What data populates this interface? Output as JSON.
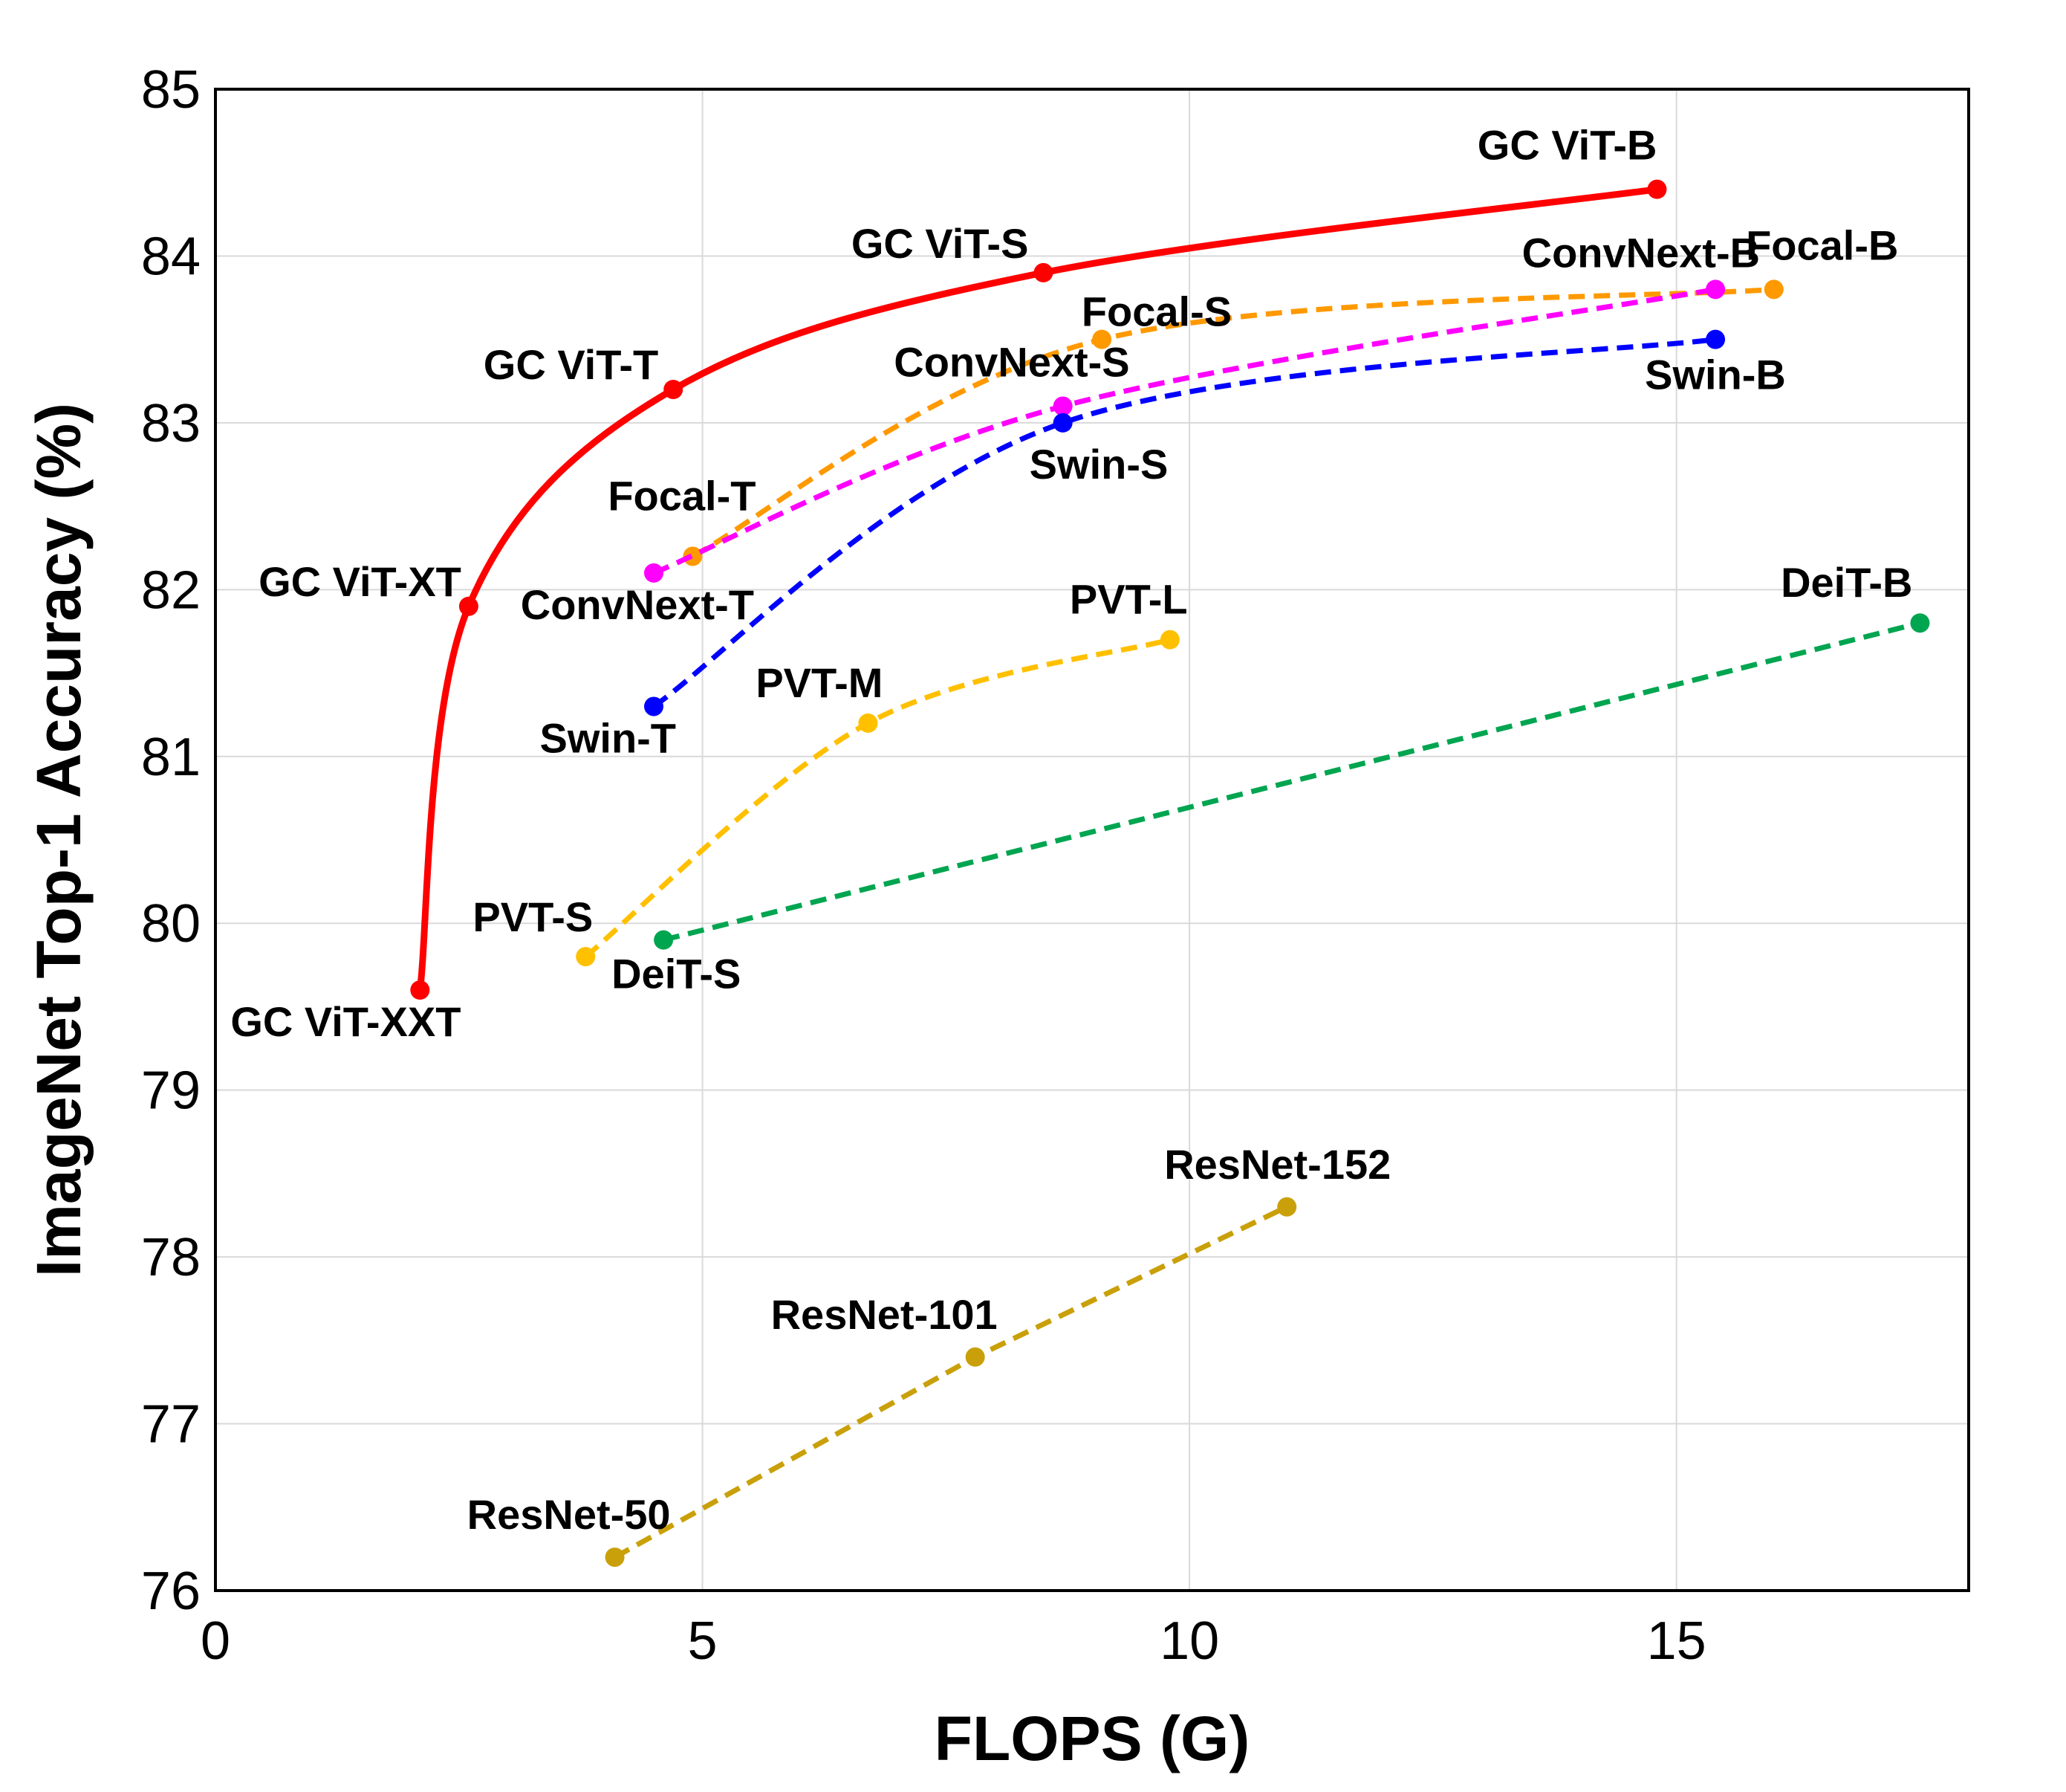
{
  "chart_data": {
    "type": "line",
    "xlabel": "FLOPS (G)",
    "ylabel": "ImageNet Top-1 Accuracy (%)",
    "xlim": [
      0,
      18
    ],
    "ylim": [
      76,
      85
    ],
    "xticks": [
      0,
      5,
      10,
      15
    ],
    "yticks": [
      76,
      77,
      78,
      79,
      80,
      81,
      82,
      83,
      84,
      85
    ],
    "grid": true,
    "series": [
      {
        "name": "GC ViT",
        "color": "#ff0000",
        "style": "solid",
        "smooth": true,
        "points": [
          {
            "label": "GC ViT-XXT",
            "x": 2.1,
            "y": 79.6
          },
          {
            "label": "GC ViT-XT",
            "x": 2.6,
            "y": 81.9
          },
          {
            "label": "GC ViT-T",
            "x": 4.7,
            "y": 83.2
          },
          {
            "label": "GC ViT-S",
            "x": 8.5,
            "y": 83.9
          },
          {
            "label": "GC ViT-B",
            "x": 14.8,
            "y": 84.4
          }
        ]
      },
      {
        "name": "Focal",
        "color": "#ff9900",
        "style": "dashed",
        "smooth": true,
        "points": [
          {
            "label": "Focal-T",
            "x": 4.9,
            "y": 82.2
          },
          {
            "label": "Focal-S",
            "x": 9.1,
            "y": 83.5
          },
          {
            "label": "Focal-B",
            "x": 16.0,
            "y": 83.8
          }
        ]
      },
      {
        "name": "ConvNext",
        "color": "#ff00ff",
        "style": "dashed",
        "smooth": true,
        "points": [
          {
            "label": "ConvNext-T",
            "x": 4.5,
            "y": 82.1
          },
          {
            "label": "ConvNext-S",
            "x": 8.7,
            "y": 83.1
          },
          {
            "label": "ConvNext-B",
            "x": 15.4,
            "y": 83.8
          }
        ]
      },
      {
        "name": "Swin",
        "color": "#0000ff",
        "style": "dashed",
        "smooth": true,
        "points": [
          {
            "label": "Swin-T",
            "x": 4.5,
            "y": 81.3
          },
          {
            "label": "Swin-S",
            "x": 8.7,
            "y": 83.0
          },
          {
            "label": "Swin-B",
            "x": 15.4,
            "y": 83.5
          }
        ]
      },
      {
        "name": "PVT",
        "color": "#ffc000",
        "style": "dashed",
        "smooth": true,
        "points": [
          {
            "label": "PVT-S",
            "x": 3.8,
            "y": 79.8
          },
          {
            "label": "PVT-M",
            "x": 6.7,
            "y": 81.2
          },
          {
            "label": "PVT-L",
            "x": 9.8,
            "y": 81.7
          }
        ]
      },
      {
        "name": "DeiT",
        "color": "#00a550",
        "style": "dashed",
        "smooth": false,
        "points": [
          {
            "label": "DeiT-S",
            "x": 4.6,
            "y": 79.9
          },
          {
            "label": "DeiT-B",
            "x": 17.5,
            "y": 81.8
          }
        ]
      },
      {
        "name": "ResNet",
        "color": "#c9a009",
        "style": "dashed",
        "smooth": false,
        "points": [
          {
            "label": "ResNet-50",
            "x": 4.1,
            "y": 76.2
          },
          {
            "label": "ResNet-101",
            "x": 7.8,
            "y": 77.4
          },
          {
            "label": "ResNet-152",
            "x": 11.0,
            "y": 78.3
          }
        ]
      }
    ]
  }
}
